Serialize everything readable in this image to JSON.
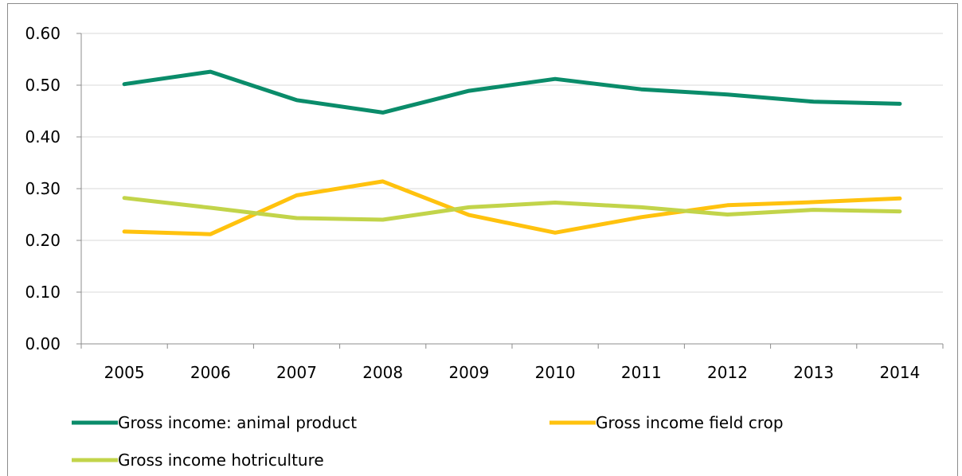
{
  "chart_data": {
    "type": "line",
    "categories": [
      "2005",
      "2006",
      "2007",
      "2008",
      "2009",
      "2010",
      "2011",
      "2012",
      "2013",
      "2014"
    ],
    "ylim": [
      0,
      0.6
    ],
    "yticks": [
      "0.00",
      "0.10",
      "0.20",
      "0.30",
      "0.40",
      "0.50",
      "0.60"
    ],
    "grid": "horizontal",
    "legend_position": "bottom",
    "series": [
      {
        "name": "Gross income: animal product",
        "color": "#0a8c6a",
        "values": [
          0.502,
          0.526,
          0.471,
          0.447,
          0.489,
          0.512,
          0.492,
          0.482,
          0.468,
          0.464
        ]
      },
      {
        "name": "Gross income field crop",
        "color": "#ffc20e",
        "values": [
          0.217,
          0.212,
          0.287,
          0.314,
          0.249,
          0.215,
          0.245,
          0.268,
          0.274,
          0.281
        ]
      },
      {
        "name": "Gross income hotriculture",
        "color": "#c2d44a",
        "values": [
          0.282,
          0.263,
          0.243,
          0.24,
          0.264,
          0.273,
          0.264,
          0.25,
          0.259,
          0.256
        ]
      }
    ]
  }
}
